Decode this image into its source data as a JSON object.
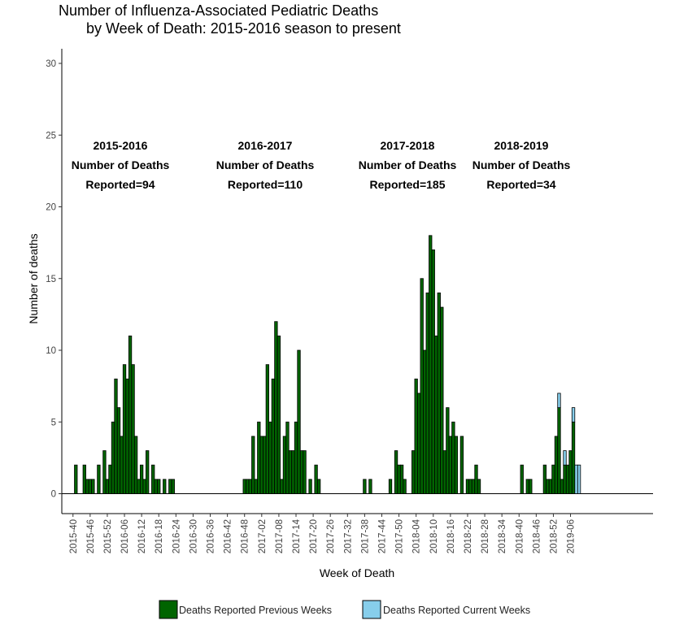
{
  "chart_data": {
    "type": "bar",
    "title_lines": [
      "Number of Influenza-Associated Pediatric Deaths",
      "by Week of Death: 2015-2016 season to present"
    ],
    "xlabel": "Week of Death",
    "ylabel": "Number of deaths",
    "ylim": [
      0,
      30
    ],
    "yticks": [
      0,
      5,
      10,
      15,
      20,
      25,
      30
    ],
    "grid": false,
    "xtick_labels": [
      "2015-40",
      "2015-46",
      "2015-52",
      "2016-06",
      "2016-12",
      "2016-18",
      "2016-24",
      "2016-30",
      "2016-36",
      "2016-42",
      "2016-48",
      "2017-02",
      "2017-08",
      "2017-14",
      "2017-20",
      "2017-26",
      "2017-32",
      "2017-38",
      "2017-44",
      "2017-50",
      "2018-04",
      "2018-10",
      "2018-16",
      "2018-22",
      "2018-28",
      "2018-34",
      "2018-40",
      "2018-46",
      "2018-52",
      "2019-06"
    ],
    "series": [
      {
        "name": "Deaths Reported Previous Weeks",
        "color": "#006400",
        "values": [
          0,
          2,
          0,
          0,
          2,
          1,
          1,
          1,
          0,
          2,
          0,
          3,
          1,
          2,
          5,
          8,
          6,
          4,
          9,
          8,
          11,
          9,
          4,
          1,
          2,
          1,
          3,
          0,
          2,
          1,
          1,
          0,
          1,
          0,
          1,
          1,
          0,
          0,
          0,
          0,
          0,
          0,
          0,
          0,
          0,
          0,
          0,
          0,
          0,
          0,
          0,
          0,
          0,
          0,
          0,
          0,
          0,
          0,
          0,
          0,
          1,
          1,
          1,
          4,
          1,
          5,
          4,
          4,
          9,
          5,
          8,
          12,
          11,
          1,
          4,
          5,
          3,
          3,
          5,
          10,
          3,
          3,
          0,
          1,
          0,
          2,
          1,
          0,
          0,
          0,
          0,
          0,
          0,
          0,
          0,
          0,
          0,
          0,
          0,
          0,
          0,
          0,
          1,
          0,
          1,
          0,
          0,
          0,
          0,
          0,
          0,
          1,
          0,
          3,
          2,
          2,
          1,
          0,
          0,
          3,
          8,
          7,
          15,
          10,
          14,
          18,
          17,
          11,
          14,
          13,
          3,
          6,
          4,
          5,
          4,
          0,
          4,
          0,
          1,
          1,
          1,
          2,
          1,
          0,
          0,
          0,
          0,
          0,
          0,
          0,
          0,
          0,
          0,
          0,
          0,
          0,
          0,
          2,
          0,
          1,
          1,
          0,
          0,
          0,
          0,
          2,
          1,
          1,
          2,
          4,
          6,
          1,
          2,
          2,
          3,
          5,
          0,
          0,
          0,
          0,
          0,
          0,
          0,
          0,
          0,
          0,
          0,
          0,
          0,
          0,
          0,
          0,
          0,
          0
        ]
      },
      {
        "name": "Deaths Reported Current Weeks",
        "color": "#87ceeb",
        "values": [
          0,
          0,
          0,
          0,
          0,
          0,
          0,
          0,
          0,
          0,
          0,
          0,
          0,
          0,
          0,
          0,
          0,
          0,
          0,
          0,
          0,
          0,
          0,
          0,
          0,
          0,
          0,
          0,
          0,
          0,
          0,
          0,
          0,
          0,
          0,
          0,
          0,
          0,
          0,
          0,
          0,
          0,
          0,
          0,
          0,
          0,
          0,
          0,
          0,
          0,
          0,
          0,
          0,
          0,
          0,
          0,
          0,
          0,
          0,
          0,
          0,
          0,
          0,
          0,
          0,
          0,
          0,
          0,
          0,
          0,
          0,
          0,
          0,
          0,
          0,
          0,
          0,
          0,
          0,
          0,
          0,
          0,
          0,
          0,
          0,
          0,
          0,
          0,
          0,
          0,
          0,
          0,
          0,
          0,
          0,
          0,
          0,
          0,
          0,
          0,
          0,
          0,
          0,
          0,
          0,
          0,
          0,
          0,
          0,
          0,
          0,
          0,
          0,
          0,
          0,
          0,
          0,
          0,
          0,
          0,
          0,
          0,
          0,
          0,
          0,
          0,
          0,
          0,
          0,
          0,
          0,
          0,
          0,
          0,
          0,
          0,
          0,
          0,
          0,
          0,
          0,
          0,
          0,
          0,
          0,
          0,
          0,
          0,
          0,
          0,
          0,
          0,
          0,
          0,
          0,
          0,
          0,
          0,
          0,
          0,
          0,
          0,
          0,
          0,
          0,
          0,
          0,
          0,
          0,
          0,
          1,
          0,
          1,
          0,
          0,
          1,
          2,
          2,
          0,
          0,
          0,
          0,
          0,
          0,
          0,
          0,
          0,
          0,
          0,
          0,
          0,
          0,
          0,
          0
        ]
      }
    ],
    "annotations": [
      {
        "season": "2015-2016",
        "line2": "Number of Deaths",
        "line3": "Reported=94"
      },
      {
        "season": "2016-2017",
        "line2": "Number of Deaths",
        "line3": "Reported=110"
      },
      {
        "season": "2017-2018",
        "line2": "Number of Deaths",
        "line3": "Reported=185"
      },
      {
        "season": "2018-2019",
        "line2": "Number of Deaths",
        "line3": "Reported=34"
      }
    ],
    "legend_position": "bottom"
  }
}
